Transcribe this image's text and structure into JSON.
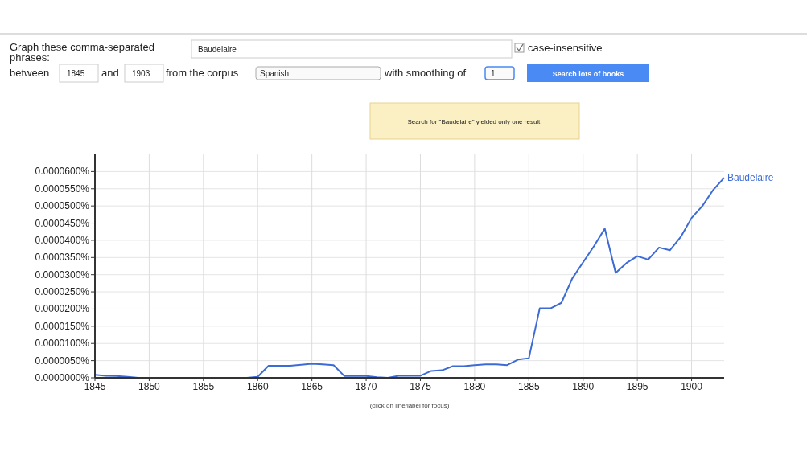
{
  "chart_data": {
    "type": "line",
    "annotations": [
      "Graph these comma-separated phrases:",
      "Baudelaire",
      "case-insensitive",
      "between",
      "1845",
      "and",
      "1903",
      "from the corpus",
      "Spanish",
      "with smoothing of",
      "1",
      "Search lots of books",
      "Search for \"Baudelaire\" yielded only one result.",
      "(click on line/label for focus)"
    ],
    "x": [
      1845,
      1846,
      1847,
      1848,
      1849,
      1850,
      1851,
      1852,
      1853,
      1854,
      1855,
      1856,
      1857,
      1858,
      1859,
      1860,
      1861,
      1862,
      1863,
      1864,
      1865,
      1866,
      1867,
      1868,
      1869,
      1870,
      1871,
      1872,
      1873,
      1874,
      1875,
      1876,
      1877,
      1878,
      1879,
      1880,
      1881,
      1882,
      1883,
      1884,
      1885,
      1886,
      1887,
      1888,
      1889,
      1890,
      1891,
      1892,
      1893,
      1894,
      1895,
      1896,
      1897,
      1898,
      1899,
      1900,
      1901,
      1902,
      1903
    ],
    "series": [
      {
        "name": "Baudelaire",
        "color": "#3d6bd6",
        "values": [
          9e-07,
          6e-07,
          5e-07,
          3e-07,
          0,
          0,
          0,
          0,
          0,
          0,
          0,
          0,
          0,
          0,
          0,
          3e-07,
          3.5e-06,
          3.5e-06,
          3.5e-06,
          3.8e-06,
          4.1e-06,
          3.9e-06,
          3.7e-06,
          5e-07,
          5e-07,
          5e-07,
          2e-07,
          0,
          6e-07,
          6e-07,
          6e-07,
          2e-06,
          2.2e-06,
          3.4e-06,
          3.4e-06,
          3.7e-06,
          3.9e-06,
          3.9e-06,
          3.7e-06,
          5.3e-06,
          5.7e-06,
          2.02e-05,
          2.02e-05,
          2.18e-05,
          2.89e-05,
          3.36e-05,
          3.83e-05,
          4.34e-05,
          3.05e-05,
          3.34e-05,
          3.54e-05,
          3.44e-05,
          3.79e-05,
          3.71e-05,
          4.1e-05,
          4.65e-05,
          5e-05,
          5.47e-05,
          5.82e-05
        ]
      }
    ],
    "xlim": [
      1845,
      1903
    ],
    "xticks": [
      1845,
      1850,
      1855,
      1860,
      1865,
      1870,
      1875,
      1880,
      1885,
      1890,
      1895,
      1900
    ],
    "ylim": [
      0,
      6.5e-05
    ],
    "yticks": [
      {
        "value": 0,
        "label": "0.0000000%"
      },
      {
        "value": 5e-06,
        "label": "0.0000050%"
      },
      {
        "value": 1e-05,
        "label": "0.0000100%"
      },
      {
        "value": 1.5e-05,
        "label": "0.0000150%"
      },
      {
        "value": 2e-05,
        "label": "0.0000200%"
      },
      {
        "value": 2.5e-05,
        "label": "0.0000250%"
      },
      {
        "value": 3e-05,
        "label": "0.0000300%"
      },
      {
        "value": 3.5e-05,
        "label": "0.0000350%"
      },
      {
        "value": 4e-05,
        "label": "0.0000400%"
      },
      {
        "value": 4.5e-05,
        "label": "0.0000450%"
      },
      {
        "value": 5e-05,
        "label": "0.0000500%"
      },
      {
        "value": 5.5e-05,
        "label": "0.0000550%"
      },
      {
        "value": 6e-05,
        "label": "0.0000600%"
      }
    ],
    "grid": true,
    "legend": false
  }
}
